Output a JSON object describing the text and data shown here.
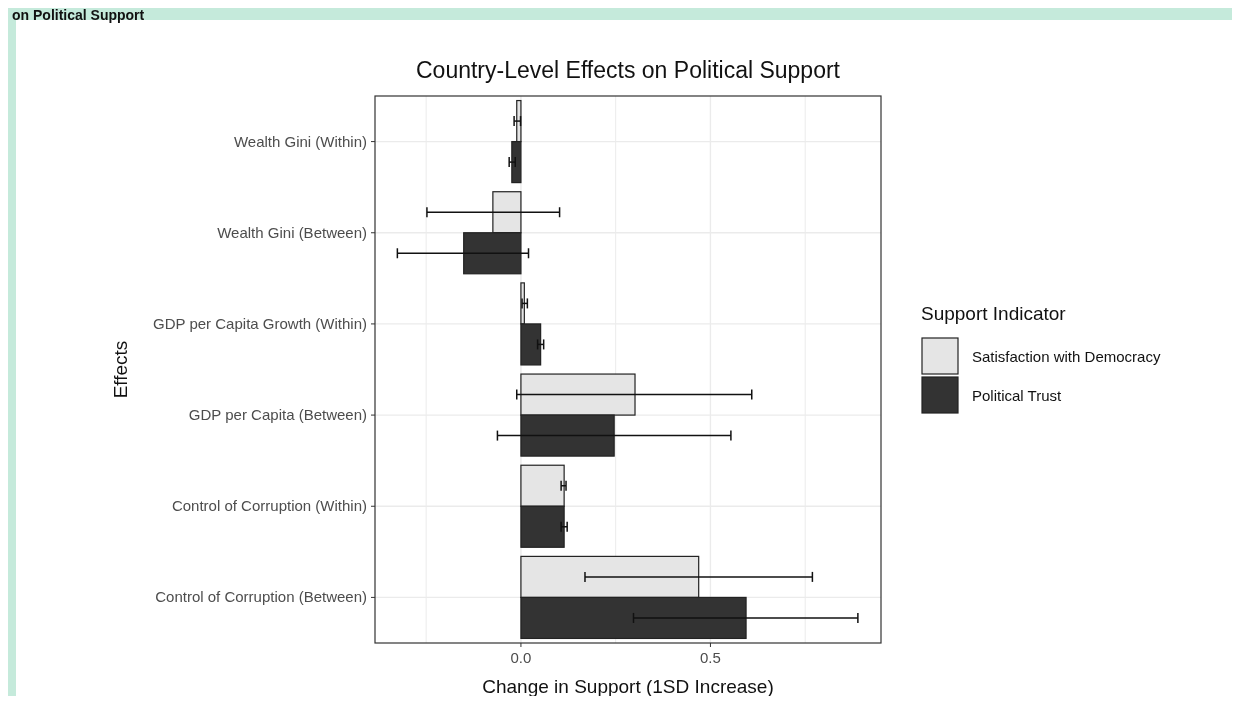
{
  "chart_data": {
    "type": "bar",
    "orientation": "horizontal",
    "title": "Country-Level Effects on Political Support",
    "xlabel": "Change in Support (1SD Increase)",
    "ylabel": "Effects",
    "legend_title": "Support Indicator",
    "legend": "right",
    "grid": true,
    "annotations": [
      "on Political Support"
    ],
    "categories": [
      "Wealth Gini (Within)",
      "Wealth Gini (Between)",
      "GDP per Capita Growth (Within)",
      "GDP per Capita (Between)",
      "Control of Corruption (Within)",
      "Control of Corruption (Between)"
    ],
    "xlim": [
      -0.385,
      0.95
    ],
    "xticks": [
      {
        "value": -0.25,
        "label": null
      },
      {
        "value": 0,
        "label": "0.0"
      },
      {
        "value": 0.25,
        "label": null
      },
      {
        "value": 0.5,
        "label": "0.5"
      },
      {
        "value": 0.75,
        "label": null
      }
    ],
    "series": [
      {
        "name": "Satisfaction with Democracy",
        "color": "#e5e5e5",
        "values": [
          -0.011,
          -0.074,
          0.009,
          0.301,
          0.114,
          0.469
        ],
        "errors": [
          [
            -0.018,
            -0.001
          ],
          [
            -0.248,
            0.102
          ],
          [
            0.003,
            0.017
          ],
          [
            -0.011,
            0.609
          ],
          [
            0.106,
            0.119
          ],
          [
            0.169,
            0.769
          ]
        ]
      },
      {
        "name": "Political Trust",
        "color": "#333333",
        "values": [
          -0.024,
          -0.151,
          0.052,
          0.246,
          0.114,
          0.594
        ],
        "errors": [
          [
            -0.031,
            -0.015
          ],
          [
            -0.326,
            0.02
          ],
          [
            0.044,
            0.06
          ],
          [
            -0.062,
            0.554
          ],
          [
            0.106,
            0.122
          ],
          [
            0.297,
            0.889
          ]
        ]
      }
    ]
  }
}
